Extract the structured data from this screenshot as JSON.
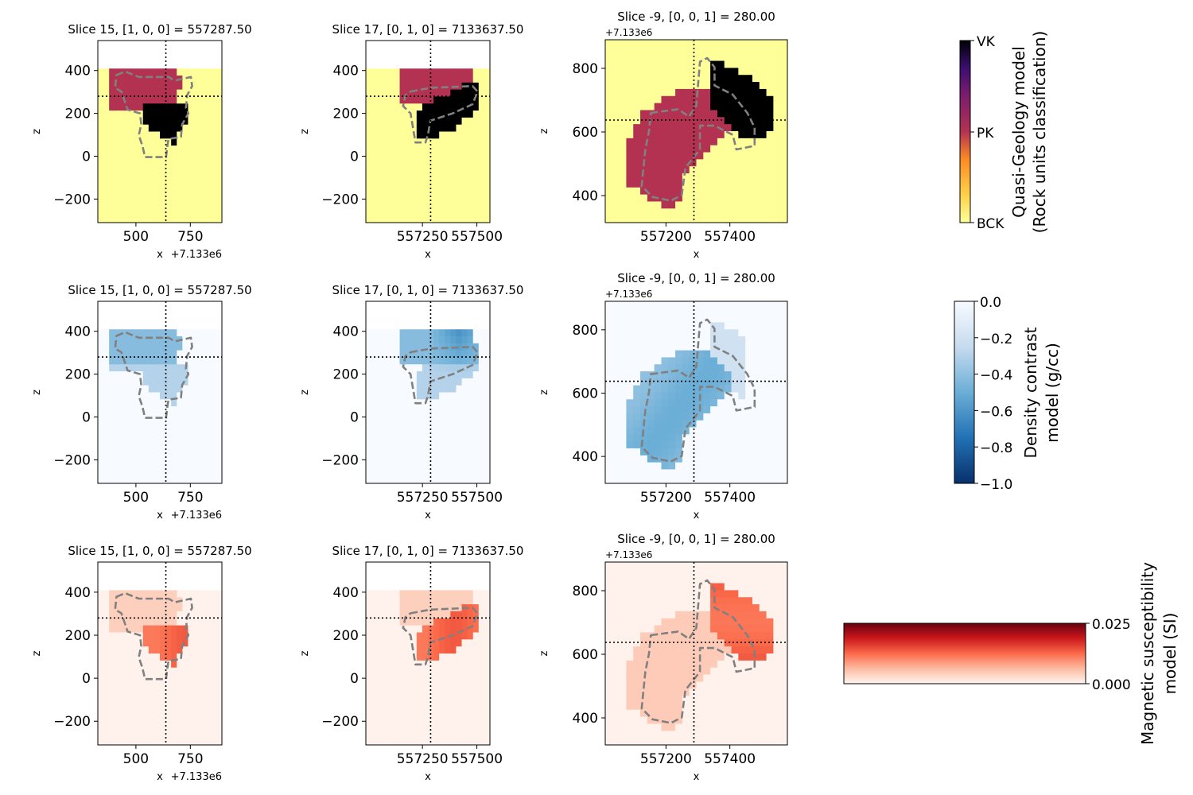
{
  "chart_data": [
    {
      "id": "r1c1",
      "type": "heatmap",
      "title": "Slice 15, [1, 0, 0] = 557287.50",
      "xlabel": "x",
      "ylabel": "z",
      "offset_label": "+7.133e6",
      "xlim": [
        325,
        895
      ],
      "ylim": [
        -310,
        540
      ],
      "xticks": [
        500,
        750
      ],
      "xtick_labels": [
        "500",
        "750"
      ],
      "yticks": [
        -200,
        0,
        200,
        400
      ],
      "ytick_labels": [
        "−200",
        "0",
        "200",
        "400"
      ],
      "crosshair": {
        "x": 637.5,
        "y": 280
      },
      "colormap": "quasi-geology",
      "model": "geology",
      "cut": "vertical"
    },
    {
      "id": "r1c2",
      "type": "heatmap",
      "title": "Slice 17, [0, 1, 0] = 7133637.50",
      "xlabel": "x",
      "ylabel": "z",
      "xlim": [
        556990,
        557560
      ],
      "ylim": [
        -310,
        540
      ],
      "xticks": [
        557250,
        557500
      ],
      "xtick_labels": [
        "557250",
        "557500"
      ],
      "yticks": [
        -200,
        0,
        200,
        400
      ],
      "ytick_labels": [
        "−200",
        "0",
        "200",
        "400"
      ],
      "crosshair": {
        "x": 557287.5,
        "y": 280
      },
      "colormap": "quasi-geology",
      "model": "geology",
      "cut": "vertical"
    },
    {
      "id": "r1c3",
      "type": "heatmap",
      "title": "Slice -9, [0, 0, 1] = 280.00",
      "xlabel": "x",
      "ylabel": "z",
      "offset_label": "+7.133e6",
      "xlim": [
        557010,
        557580
      ],
      "ylim": [
        315,
        890
      ],
      "xticks": [
        557200,
        557400
      ],
      "xtick_labels": [
        "557200",
        "557400"
      ],
      "yticks": [
        400,
        600,
        800
      ],
      "ytick_labels": [
        "400",
        "600",
        "800"
      ],
      "crosshair": {
        "x": 557287.5,
        "y": 637.5
      },
      "colormap": "quasi-geology",
      "model": "geology",
      "cut": "horizontal"
    },
    {
      "id": "r2c1",
      "type": "heatmap",
      "title": "Slice 15, [1, 0, 0] = 557287.50",
      "xlabel": "x",
      "ylabel": "z",
      "offset_label": "+7.133e6",
      "xlim": [
        325,
        895
      ],
      "ylim": [
        -310,
        540
      ],
      "xticks": [
        500,
        750
      ],
      "xtick_labels": [
        "500",
        "750"
      ],
      "yticks": [
        -200,
        0,
        200,
        400
      ],
      "ytick_labels": [
        "−200",
        "0",
        "200",
        "400"
      ],
      "crosshair": {
        "x": 637.5,
        "y": 280
      },
      "colormap": "Blues_r",
      "model": "density",
      "cut": "vertical"
    },
    {
      "id": "r2c2",
      "type": "heatmap",
      "title": "Slice 17, [0, 1, 0] = 7133637.50",
      "xlabel": "x",
      "ylabel": "z",
      "xlim": [
        556990,
        557560
      ],
      "ylim": [
        -310,
        540
      ],
      "xticks": [
        557250,
        557500
      ],
      "xtick_labels": [
        "557250",
        "557500"
      ],
      "yticks": [
        -200,
        0,
        200,
        400
      ],
      "ytick_labels": [
        "−200",
        "0",
        "200",
        "400"
      ],
      "crosshair": {
        "x": 557287.5,
        "y": 280
      },
      "colormap": "Blues_r",
      "model": "density",
      "cut": "vertical"
    },
    {
      "id": "r2c3",
      "type": "heatmap",
      "title": "Slice -9, [0, 0, 1] = 280.00",
      "xlabel": "x",
      "ylabel": "z",
      "offset_label": "+7.133e6",
      "xlim": [
        557010,
        557580
      ],
      "ylim": [
        315,
        890
      ],
      "xticks": [
        557200,
        557400
      ],
      "xtick_labels": [
        "557200",
        "557400"
      ],
      "yticks": [
        400,
        600,
        800
      ],
      "ytick_labels": [
        "400",
        "600",
        "800"
      ],
      "crosshair": {
        "x": 557287.5,
        "y": 637.5
      },
      "colormap": "Blues_r",
      "model": "density",
      "cut": "horizontal"
    },
    {
      "id": "r3c1",
      "type": "heatmap",
      "title": "Slice 15, [1, 0, 0] = 557287.50",
      "xlabel": "x",
      "ylabel": "z",
      "offset_label": "+7.133e6",
      "xlim": [
        325,
        895
      ],
      "ylim": [
        -310,
        540
      ],
      "xticks": [
        500,
        750
      ],
      "xtick_labels": [
        "500",
        "750"
      ],
      "yticks": [
        -200,
        0,
        200,
        400
      ],
      "ytick_labels": [
        "−200",
        "0",
        "200",
        "400"
      ],
      "crosshair": {
        "x": 637.5,
        "y": 280
      },
      "colormap": "Reds",
      "model": "magnetic",
      "cut": "vertical"
    },
    {
      "id": "r3c2",
      "type": "heatmap",
      "title": "Slice 17, [0, 1, 0] = 7133637.50",
      "xlabel": "x",
      "ylabel": "z",
      "xlim": [
        556990,
        557560
      ],
      "ylim": [
        -310,
        540
      ],
      "xticks": [
        557250,
        557500
      ],
      "xtick_labels": [
        "557250",
        "557500"
      ],
      "yticks": [
        -200,
        0,
        200,
        400
      ],
      "ytick_labels": [
        "−200",
        "0",
        "200",
        "400"
      ],
      "crosshair": {
        "x": 557287.5,
        "y": 280
      },
      "colormap": "Reds",
      "model": "magnetic",
      "cut": "vertical"
    },
    {
      "id": "r3c3",
      "type": "heatmap",
      "title": "Slice -9, [0, 0, 1] = 280.00",
      "xlabel": "x",
      "ylabel": "z",
      "offset_label": "+7.133e6",
      "xlim": [
        557010,
        557580
      ],
      "ylim": [
        315,
        890
      ],
      "xticks": [
        557200,
        557400
      ],
      "xtick_labels": [
        "557200",
        "557400"
      ],
      "yticks": [
        400,
        600,
        800
      ],
      "ytick_labels": [
        "400",
        "600",
        "800"
      ],
      "crosshair": {
        "x": 557287.5,
        "y": 637.5
      },
      "colormap": "Reds",
      "model": "magnetic",
      "cut": "horizontal"
    }
  ],
  "colorbars": [
    {
      "id": "geology",
      "orientation": "vertical",
      "label_lines": [
        "Quasi-Geology model",
        "(Rock units classification)"
      ],
      "tick_labels": [
        "VK",
        "PK",
        "BCK"
      ],
      "colors": [
        "#000004",
        "#b33252",
        "#ffff99"
      ]
    },
    {
      "id": "density",
      "orientation": "vertical",
      "label_lines": [
        "Density contrast",
        "model (g/cc)"
      ],
      "range": [
        -1.0,
        0.0
      ],
      "tick_labels": [
        "0.0",
        "−0.2",
        "−0.4",
        "−0.6",
        "−0.8",
        "−1.0"
      ],
      "colors": [
        "#08306b",
        "#2171b5",
        "#6baed6",
        "#c6dbef",
        "#f7fbff"
      ]
    },
    {
      "id": "magnetic",
      "orientation": "horizontal",
      "label_lines": [
        "Magnetic susceptibility",
        "model (SI)"
      ],
      "range": [
        0.0,
        0.025
      ],
      "tick_labels": [
        "0.025",
        "0.000"
      ],
      "colors": [
        "#fff5f0",
        "#fcbba1",
        "#fb6a4a",
        "#cb181d",
        "#67000d"
      ]
    }
  ]
}
